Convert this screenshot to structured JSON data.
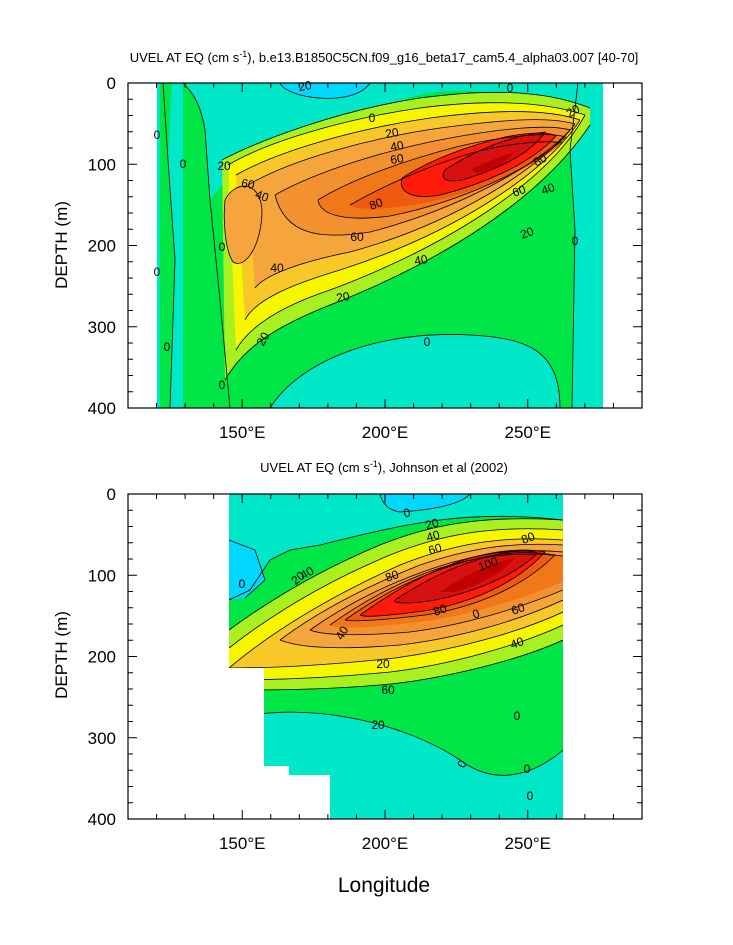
{
  "chart_data": [
    {
      "type": "contour",
      "title": "UVEL AT EQ (cm s",
      "title_sup": "-1",
      "title_rest": "), b.e13.B1850C5CN.f09_g16_beta17_cam5.4_alpha03.007 [40-70]",
      "xlabel": "",
      "ylabel": "DEPTH (m)",
      "xlim": [
        110,
        290
      ],
      "ylim": [
        0,
        400
      ],
      "x_ticks": [
        "150°E",
        "200°E",
        "250°E"
      ],
      "x_tick_values": [
        150,
        200,
        250
      ],
      "y_ticks": [
        "0",
        "100",
        "200",
        "300",
        "400"
      ],
      "y_tick_values": [
        0,
        100,
        200,
        300,
        400
      ],
      "data_xlim": [
        117,
        278
      ],
      "contour_levels": [
        -20,
        0,
        20,
        40,
        60,
        80,
        100
      ],
      "core": {
        "lon": 235,
        "depth": 120,
        "max_cm_s": 100
      },
      "contour_labels": [
        "20",
        "0",
        "20",
        "40",
        "60",
        "20",
        "40",
        "60",
        "80",
        "80",
        "60",
        "40",
        "20",
        "60",
        "40",
        "40",
        "20",
        "20",
        "0",
        "0",
        "0",
        "0",
        "0",
        "0",
        "0",
        "0",
        "0",
        "20"
      ]
    },
    {
      "type": "contour",
      "title": "UVEL AT EQ (cm s",
      "title_sup": "-1",
      "title_rest": "), Johnson et al (2002)",
      "xlabel": "Longitude",
      "ylabel": "DEPTH (m)",
      "xlim": [
        110,
        290
      ],
      "ylim": [
        0,
        400
      ],
      "x_ticks": [
        "150°E",
        "200°E",
        "250°E"
      ],
      "x_tick_values": [
        150,
        200,
        250
      ],
      "y_ticks": [
        "0",
        "100",
        "200",
        "300",
        "400"
      ],
      "y_tick_values": [
        0,
        100,
        200,
        300,
        400
      ],
      "data_xlim": [
        143,
        265
      ],
      "contour_levels": [
        -20,
        0,
        20,
        40,
        60,
        80,
        100
      ],
      "core": {
        "lon": 230,
        "depth": 110,
        "max_cm_s": 100
      },
      "contour_labels": [
        "0",
        "20",
        "40",
        "60",
        "80",
        "100",
        "80",
        "40",
        "20",
        "0",
        "80",
        "60",
        "40",
        "20",
        "60",
        "40",
        "20",
        "0",
        "0",
        "0",
        "0",
        "0"
      ]
    }
  ]
}
